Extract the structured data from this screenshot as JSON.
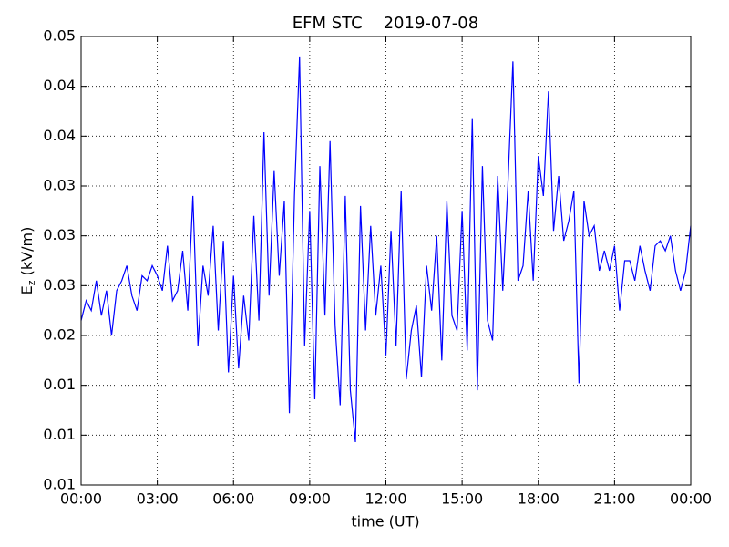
{
  "chart_data": {
    "type": "line",
    "title": "EFM STC    2019-07-08",
    "xlabel": "time (UT)",
    "ylabel": {
      "main": "E",
      "sub": "z",
      "unit": " (kV/m)"
    },
    "series": [
      {
        "name": "Ez",
        "color": "#0000ff",
        "x": [
          0.0,
          0.2,
          0.4,
          0.6,
          0.8,
          1.0,
          1.2,
          1.4,
          1.6,
          1.8,
          2.0,
          2.2,
          2.4,
          2.6,
          2.8,
          3.0,
          3.2,
          3.4,
          3.6,
          3.8,
          4.0,
          4.2,
          4.4,
          4.6,
          4.8,
          5.0,
          5.2,
          5.4,
          5.6,
          5.8,
          6.0,
          6.2,
          6.4,
          6.6,
          6.8,
          7.0,
          7.2,
          7.4,
          7.6,
          7.8,
          8.0,
          8.2,
          8.4,
          8.6,
          8.8,
          9.0,
          9.2,
          9.4,
          9.6,
          9.8,
          10.0,
          10.2,
          10.4,
          10.6,
          10.8,
          11.0,
          11.2,
          11.4,
          11.6,
          11.8,
          12.0,
          12.2,
          12.4,
          12.6,
          12.8,
          13.0,
          13.2,
          13.4,
          13.6,
          13.8,
          14.0,
          14.2,
          14.4,
          14.6,
          14.8,
          15.0,
          15.2,
          15.4,
          15.6,
          15.8,
          16.0,
          16.2,
          16.4,
          16.6,
          16.8,
          17.0,
          17.2,
          17.4,
          17.6,
          17.8,
          18.0,
          18.2,
          18.4,
          18.6,
          18.8,
          19.0,
          19.2,
          19.4,
          19.6,
          19.8,
          20.0,
          20.2,
          20.4,
          20.6,
          20.8,
          21.0,
          21.2,
          21.4,
          21.6,
          21.8,
          22.0,
          22.2,
          22.4,
          22.6,
          22.8,
          23.0,
          23.2,
          23.4,
          23.6,
          23.8,
          24.0
        ],
        "values": [
          0.0215,
          0.0235,
          0.0225,
          0.0255,
          0.022,
          0.0245,
          0.02,
          0.0245,
          0.0255,
          0.027,
          0.024,
          0.0225,
          0.026,
          0.0255,
          0.027,
          0.026,
          0.0245,
          0.029,
          0.0235,
          0.0245,
          0.0285,
          0.0225,
          0.034,
          0.019,
          0.027,
          0.024,
          0.031,
          0.0205,
          0.0295,
          0.0163,
          0.026,
          0.0167,
          0.024,
          0.0195,
          0.032,
          0.0215,
          0.0404,
          0.024,
          0.0365,
          0.026,
          0.0335,
          0.0122,
          0.034,
          0.048,
          0.019,
          0.0325,
          0.0136,
          0.037,
          0.022,
          0.0395,
          0.021,
          0.013,
          0.034,
          0.0145,
          0.0093,
          0.033,
          0.0205,
          0.031,
          0.022,
          0.027,
          0.018,
          0.0305,
          0.019,
          0.0345,
          0.0156,
          0.0205,
          0.023,
          0.0158,
          0.027,
          0.0225,
          0.03,
          0.0175,
          0.0335,
          0.022,
          0.0205,
          0.0325,
          0.0185,
          0.0418,
          0.0145,
          0.037,
          0.0215,
          0.0195,
          0.036,
          0.0245,
          0.035,
          0.0475,
          0.0255,
          0.027,
          0.0345,
          0.0255,
          0.038,
          0.034,
          0.0445,
          0.0305,
          0.036,
          0.0295,
          0.0315,
          0.0345,
          0.0152,
          0.0335,
          0.03,
          0.031,
          0.0265,
          0.0285,
          0.0265,
          0.029,
          0.0225,
          0.0275,
          0.0275,
          0.0255,
          0.029,
          0.0265,
          0.0245,
          0.029,
          0.0295,
          0.0285,
          0.03,
          0.0265,
          0.0245,
          0.0265,
          0.031
        ]
      }
    ],
    "xlim": [
      0,
      24
    ],
    "xticks": [
      {
        "value": 0,
        "label": "00:00"
      },
      {
        "value": 3,
        "label": "03:00"
      },
      {
        "value": 6,
        "label": "06:00"
      },
      {
        "value": 9,
        "label": "09:00"
      },
      {
        "value": 12,
        "label": "12:00"
      },
      {
        "value": 15,
        "label": "15:00"
      },
      {
        "value": 18,
        "label": "18:00"
      },
      {
        "value": 21,
        "label": "21:00"
      },
      {
        "value": 24,
        "label": "00:00"
      }
    ],
    "ylim": [
      0.005,
      0.05
    ],
    "yticks": [
      {
        "value": 0.005,
        "label": "0.01"
      },
      {
        "value": 0.01,
        "label": "0.01"
      },
      {
        "value": 0.015,
        "label": "0.01"
      },
      {
        "value": 0.02,
        "label": "0.02"
      },
      {
        "value": 0.025,
        "label": "0.03"
      },
      {
        "value": 0.03,
        "label": "0.03"
      },
      {
        "value": 0.035,
        "label": "0.03"
      },
      {
        "value": 0.04,
        "label": "0.04"
      },
      {
        "value": 0.045,
        "label": "0.04"
      },
      0.05
    ],
    "grid": true
  }
}
